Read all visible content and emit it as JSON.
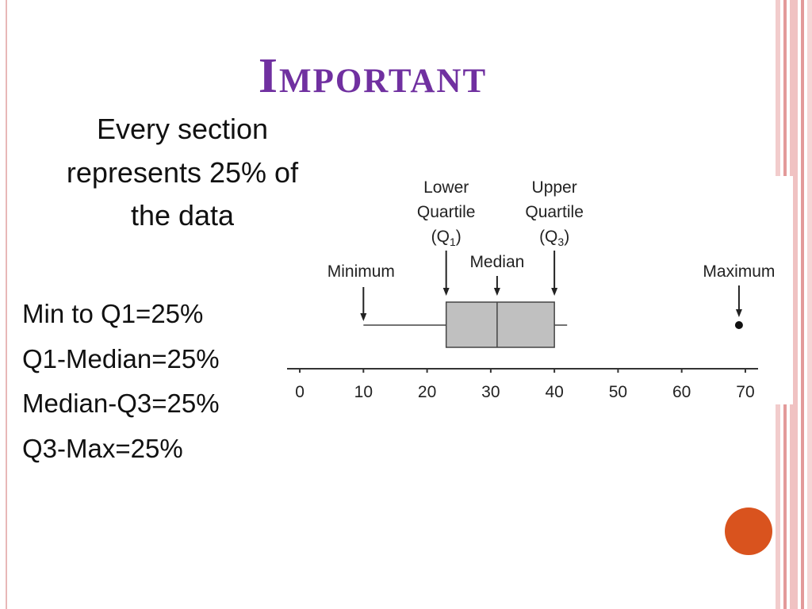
{
  "title": "Important",
  "intro": [
    "Every section",
    "represents 25% of",
    "the data"
  ],
  "points": [
    "Min to Q1=25%",
    "Q1-Median=25%",
    "Median-Q3=25%",
    "Q3-Max=25%"
  ],
  "chart_data": {
    "type": "box",
    "min": 10,
    "q1": 23,
    "median": 31,
    "q3": 40,
    "whisker_high": 42,
    "outliers": [
      69
    ],
    "xlim": [
      -2,
      72
    ],
    "xticks": [
      0,
      10,
      20,
      30,
      40,
      50,
      60,
      70
    ],
    "min_label": "Minimum",
    "q1_label": {
      "lines": [
        "Lower",
        "Quartile"
      ],
      "open": "(Q",
      "sub": "1",
      "close": ")"
    },
    "median_label": "Median",
    "q3_label": {
      "lines": [
        "Upper",
        "Quartile"
      ],
      "open": "(Q",
      "sub": "3",
      "close": ")"
    },
    "max_label": "Maximum",
    "box_color": "#c0c0c0"
  }
}
